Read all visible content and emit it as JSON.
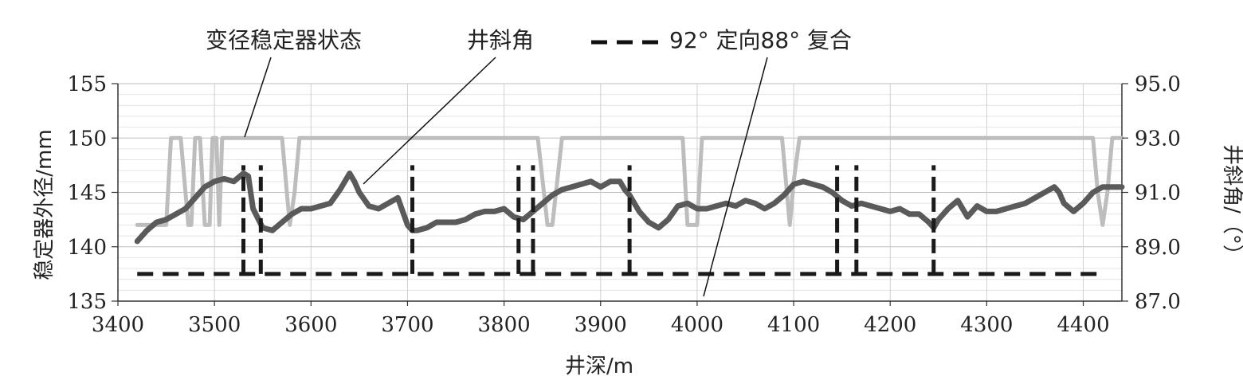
{
  "chart_data": {
    "type": "line",
    "title": "",
    "xlabel": "井深/m",
    "ylabel_left": "稳定器外径/mm",
    "ylabel_right": "井斜角/（°）",
    "xlim": [
      3400,
      4440
    ],
    "ylim_left": [
      135,
      155
    ],
    "ylim_right": [
      87.0,
      95.0
    ],
    "x_ticks": [
      "3400",
      "3500",
      "3600",
      "3700",
      "3800",
      "3900",
      "4000",
      "4100",
      "4200",
      "4300",
      "4400"
    ],
    "y_left_ticks": [
      "135",
      "140",
      "145",
      "150",
      "155"
    ],
    "y_right_ticks": [
      "87.0",
      "89.0",
      "91.0",
      "93.0",
      "95.0"
    ],
    "grid": true,
    "annotations": {
      "stabilizer": "变径稳定器状态",
      "inclination": "井斜角",
      "legend_dash": "92° 定向88° 复合"
    },
    "series": [
      {
        "name": "变径稳定器状态",
        "axis": "left",
        "color": "#bdbdbd",
        "x": [
          3420,
          3445,
          3450,
          3455,
          3465,
          3470,
          3473,
          3476,
          3480,
          3485,
          3490,
          3495,
          3498,
          3502,
          3505,
          3508,
          3512,
          3517,
          3522,
          3528,
          3535,
          3540,
          3545,
          3550,
          3555,
          3560,
          3570,
          3575,
          3578,
          3583,
          3588,
          3592,
          3596,
          3600,
          3640,
          3680,
          3720,
          3760,
          3800,
          3835,
          3840,
          3845,
          3850,
          3855,
          3860,
          3900,
          3920,
          3960,
          3980,
          3985,
          3990,
          3993,
          4000,
          4005,
          4008,
          4012,
          4017,
          4022,
          4030,
          4040,
          4050,
          4070,
          4088,
          4092,
          4096,
          4100,
          4106,
          4150,
          4200,
          4250,
          4300,
          4350,
          4400,
          4410,
          4415,
          4420,
          4425,
          4430,
          4440
        ],
        "values": [
          142,
          142,
          142,
          150,
          150,
          145,
          142,
          142,
          150,
          150,
          142,
          142,
          150,
          150,
          142,
          150,
          150,
          150,
          150,
          150,
          150,
          150,
          150,
          150,
          150,
          150,
          150,
          145,
          142,
          145,
          150,
          150,
          150,
          150,
          150,
          150,
          150,
          150,
          150,
          150,
          146,
          142,
          142,
          146,
          150,
          150,
          150,
          150,
          150,
          150,
          142,
          142,
          142,
          150,
          150,
          150,
          150,
          150,
          150,
          150,
          150,
          150,
          150,
          146,
          142,
          146,
          150,
          150,
          150,
          150,
          150,
          150,
          150,
          150,
          145,
          142,
          145,
          150,
          150
        ]
      },
      {
        "name": "井斜角",
        "axis": "right",
        "color": "#5a5a5a",
        "x": [
          3420,
          3430,
          3440,
          3450,
          3460,
          3470,
          3480,
          3490,
          3500,
          3510,
          3520,
          3530,
          3535,
          3540,
          3550,
          3560,
          3570,
          3580,
          3590,
          3600,
          3610,
          3620,
          3630,
          3640,
          3645,
          3650,
          3660,
          3670,
          3680,
          3690,
          3700,
          3705,
          3710,
          3720,
          3730,
          3740,
          3750,
          3760,
          3770,
          3780,
          3790,
          3800,
          3810,
          3820,
          3830,
          3840,
          3850,
          3860,
          3870,
          3880,
          3890,
          3900,
          3910,
          3920,
          3925,
          3930,
          3940,
          3950,
          3960,
          3970,
          3980,
          3990,
          4000,
          4010,
          4020,
          4030,
          4040,
          4050,
          4060,
          4070,
          4080,
          4090,
          4100,
          4110,
          4120,
          4130,
          4140,
          4150,
          4160,
          4170,
          4180,
          4190,
          4200,
          4210,
          4220,
          4230,
          4240,
          4245,
          4250,
          4260,
          4270,
          4280,
          4290,
          4300,
          4310,
          4320,
          4330,
          4340,
          4350,
          4360,
          4370,
          4375,
          4380,
          4390,
          4400,
          4410,
          4420,
          4430,
          4440
        ],
        "values": [
          89.2,
          89.6,
          89.9,
          90.0,
          90.2,
          90.4,
          90.8,
          91.2,
          91.4,
          91.5,
          91.4,
          91.7,
          91.6,
          90.4,
          89.7,
          89.6,
          89.9,
          90.2,
          90.4,
          90.4,
          90.5,
          90.6,
          91.1,
          91.7,
          91.4,
          91.0,
          90.5,
          90.4,
          90.6,
          90.8,
          89.8,
          89.6,
          89.6,
          89.7,
          89.9,
          89.9,
          89.9,
          90.0,
          90.2,
          90.3,
          90.3,
          90.4,
          90.1,
          90.0,
          90.3,
          90.6,
          90.9,
          91.1,
          91.2,
          91.3,
          91.4,
          91.2,
          91.4,
          91.4,
          91.1,
          90.9,
          90.3,
          89.9,
          89.7,
          90.0,
          90.5,
          90.6,
          90.4,
          90.4,
          90.5,
          90.6,
          90.5,
          90.7,
          90.6,
          90.4,
          90.6,
          90.9,
          91.3,
          91.4,
          91.3,
          91.2,
          91.0,
          90.7,
          90.5,
          90.6,
          90.5,
          90.4,
          90.3,
          90.4,
          90.2,
          90.2,
          89.9,
          89.7,
          90.0,
          90.4,
          90.7,
          90.1,
          90.5,
          90.3,
          90.3,
          90.4,
          90.5,
          90.6,
          90.8,
          91.0,
          91.2,
          91.0,
          90.6,
          90.3,
          90.6,
          91.0,
          91.2,
          91.2,
          91.2
        ]
      },
      {
        "name": "92° 定向88° 复合",
        "axis": "right",
        "color": "#1a1a1a",
        "baseline": 88.0,
        "spikes_x": [
          3530,
          3548,
          3705,
          3815,
          3830,
          3930,
          4145,
          4165,
          4245
        ]
      }
    ]
  }
}
